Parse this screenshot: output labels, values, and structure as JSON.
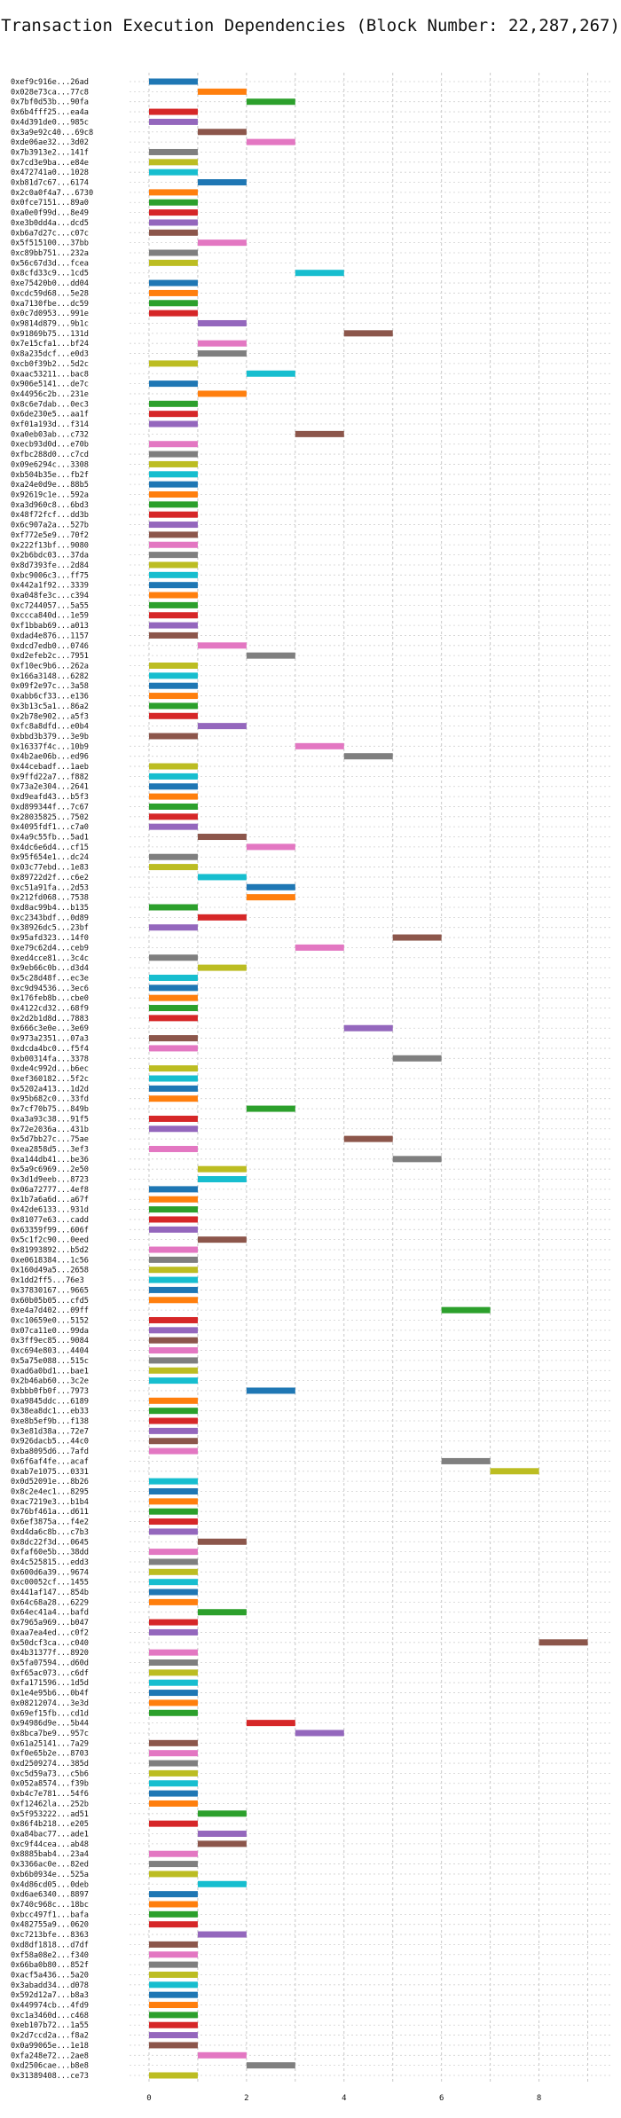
{
  "chart_data": {
    "type": "bar",
    "title": "Transaction Execution Dependencies (Block Number: 22,287,267)",
    "xlabel": "",
    "ylabel": "",
    "xlim": [
      -0.4,
      9.5
    ],
    "xticks": [
      0,
      2,
      4,
      6,
      8
    ],
    "grid": true,
    "palette": {
      "blue": "#1f77b4",
      "orange": "#ff7f0e",
      "green": "#2ca02c",
      "red": "#d62728",
      "purple": "#9467bd",
      "brown": "#8c564b",
      "pink": "#e377c2",
      "gray": "#7f7f7f",
      "olive": "#bcbd22",
      "cyan": "#17becf"
    },
    "bars": [
      {
        "tx": "0xef9c916e...26ad",
        "start": 0,
        "color": "blue"
      },
      {
        "tx": "0x028e73ca...77c8",
        "start": 1,
        "color": "orange"
      },
      {
        "tx": "0x7bf0d53b...90fa",
        "start": 2,
        "color": "green"
      },
      {
        "tx": "0x6b4fff25...ea4a",
        "start": 0,
        "color": "red"
      },
      {
        "tx": "0x4d391de0...985c",
        "start": 0,
        "color": "purple"
      },
      {
        "tx": "0x3a9e92c40...69c8",
        "start": 1,
        "color": "brown"
      },
      {
        "tx": "0xde06ae32...3d02",
        "start": 2,
        "color": "pink"
      },
      {
        "tx": "0x7b3913e2...141f",
        "start": 0,
        "color": "gray"
      },
      {
        "tx": "0x7cd3e9ba...e84e",
        "start": 0,
        "color": "olive"
      },
      {
        "tx": "0x472741a0...1028",
        "start": 0,
        "color": "cyan"
      },
      {
        "tx": "0xb81d7c67...6174",
        "start": 1,
        "color": "blue"
      },
      {
        "tx": "0x2c0a0f4a7...6730",
        "start": 0,
        "color": "orange"
      },
      {
        "tx": "0x0fce7151...89a0",
        "start": 0,
        "color": "green"
      },
      {
        "tx": "0xa0e0f99d...8e49",
        "start": 0,
        "color": "red"
      },
      {
        "tx": "0xe3b0dd4a...dcd5",
        "start": 0,
        "color": "purple"
      },
      {
        "tx": "0xb6a7d27c...c07c",
        "start": 0,
        "color": "brown"
      },
      {
        "tx": "0x5f515100...37bb",
        "start": 1,
        "color": "pink"
      },
      {
        "tx": "0xc89bb751...232a",
        "start": 0,
        "color": "gray"
      },
      {
        "tx": "0x56c67d3d...fcea",
        "start": 0,
        "color": "olive"
      },
      {
        "tx": "0x8cfd33c9...1cd5",
        "start": 3,
        "color": "cyan"
      },
      {
        "tx": "0xe75420b0...dd04",
        "start": 0,
        "color": "blue"
      },
      {
        "tx": "0xcdc59d68...5e28",
        "start": 0,
        "color": "orange"
      },
      {
        "tx": "0xa7130fbe...dc59",
        "start": 0,
        "color": "green"
      },
      {
        "tx": "0x0c7d0953...991e",
        "start": 0,
        "color": "red"
      },
      {
        "tx": "0x9814d879...9b1c",
        "start": 1,
        "color": "purple"
      },
      {
        "tx": "0x91869b75...131d",
        "start": 4,
        "color": "brown"
      },
      {
        "tx": "0x7e15cfa1...bf24",
        "start": 1,
        "color": "pink"
      },
      {
        "tx": "0x8a235dcf...e0d3",
        "start": 1,
        "color": "gray"
      },
      {
        "tx": "0xcb0f39b2...5d2c",
        "start": 0,
        "color": "olive"
      },
      {
        "tx": "0xaac53211...bac8",
        "start": 2,
        "color": "cyan"
      },
      {
        "tx": "0x906e5141...de7c",
        "start": 0,
        "color": "blue"
      },
      {
        "tx": "0x44956c2b...231e",
        "start": 1,
        "color": "orange"
      },
      {
        "tx": "0x8c6e7dab...0ec3",
        "start": 0,
        "color": "green"
      },
      {
        "tx": "0x6de230e5...aa1f",
        "start": 0,
        "color": "red"
      },
      {
        "tx": "0xf01a193d...f314",
        "start": 0,
        "color": "purple"
      },
      {
        "tx": "0xa0eb03ab...c732",
        "start": 3,
        "color": "brown"
      },
      {
        "tx": "0xecb93d0d...e70b",
        "start": 0,
        "color": "pink"
      },
      {
        "tx": "0xfbc288d0...c7cd",
        "start": 0,
        "color": "gray"
      },
      {
        "tx": "0x09e6294c...3308",
        "start": 0,
        "color": "olive"
      },
      {
        "tx": "0xb504b35e...fb2f",
        "start": 0,
        "color": "cyan"
      },
      {
        "tx": "0xa24e0d9e...88b5",
        "start": 0,
        "color": "blue"
      },
      {
        "tx": "0x92619c1e...592a",
        "start": 0,
        "color": "orange"
      },
      {
        "tx": "0xa3d960c8...6bd3",
        "start": 0,
        "color": "green"
      },
      {
        "tx": "0x48f72fcf...dd3b",
        "start": 0,
        "color": "red"
      },
      {
        "tx": "0x6c907a2a...527b",
        "start": 0,
        "color": "purple"
      },
      {
        "tx": "0xf772e5e9...70f2",
        "start": 0,
        "color": "brown"
      },
      {
        "tx": "0x222f13bf...9080",
        "start": 0,
        "color": "pink"
      },
      {
        "tx": "0x2b6bdc03...37da",
        "start": 0,
        "color": "gray"
      },
      {
        "tx": "0x8d7393fe...2d84",
        "start": 0,
        "color": "olive"
      },
      {
        "tx": "0xbc9006c3...ff75",
        "start": 0,
        "color": "cyan"
      },
      {
        "tx": "0x442a1f92...3339",
        "start": 0,
        "color": "blue"
      },
      {
        "tx": "0xa048fe3c...c394",
        "start": 0,
        "color": "orange"
      },
      {
        "tx": "0xc7244057...5a55",
        "start": 0,
        "color": "green"
      },
      {
        "tx": "0xccca840d...1e59",
        "start": 0,
        "color": "red"
      },
      {
        "tx": "0xf1bbab69...a013",
        "start": 0,
        "color": "purple"
      },
      {
        "tx": "0xdad4e876...1157",
        "start": 0,
        "color": "brown"
      },
      {
        "tx": "0xdcd7edb0...0746",
        "start": 1,
        "color": "pink"
      },
      {
        "tx": "0xd2efeb2c...7951",
        "start": 2,
        "color": "gray"
      },
      {
        "tx": "0xf10ec9b6...262a",
        "start": 0,
        "color": "olive"
      },
      {
        "tx": "0x166a3148...6282",
        "start": 0,
        "color": "cyan"
      },
      {
        "tx": "0x09f2e97c...3a58",
        "start": 0,
        "color": "blue"
      },
      {
        "tx": "0xabb6cf33...e136",
        "start": 0,
        "color": "orange"
      },
      {
        "tx": "0x3b13c5a1...86a2",
        "start": 0,
        "color": "green"
      },
      {
        "tx": "0x2b78e902...a5f3",
        "start": 0,
        "color": "red"
      },
      {
        "tx": "0xfc8a8dfd...e0b4",
        "start": 1,
        "color": "purple"
      },
      {
        "tx": "0xbbd3b379...3e9b",
        "start": 0,
        "color": "brown"
      },
      {
        "tx": "0x16337f4c...10b9",
        "start": 3,
        "color": "pink"
      },
      {
        "tx": "0x4b2ae06b...ed96",
        "start": 4,
        "color": "gray"
      },
      {
        "tx": "0x44cebadf...1aeb",
        "start": 0,
        "color": "olive"
      },
      {
        "tx": "0x9ffd22a7...f882",
        "start": 0,
        "color": "cyan"
      },
      {
        "tx": "0x73a2e304...2641",
        "start": 0,
        "color": "blue"
      },
      {
        "tx": "0xd9eafd43...b5f3",
        "start": 0,
        "color": "orange"
      },
      {
        "tx": "0xd899344f...7c67",
        "start": 0,
        "color": "green"
      },
      {
        "tx": "0x28035825...7502",
        "start": 0,
        "color": "red"
      },
      {
        "tx": "0x4095fdf1...c7a0",
        "start": 0,
        "color": "purple"
      },
      {
        "tx": "0x4a9c55fb...5ad1",
        "start": 1,
        "color": "brown"
      },
      {
        "tx": "0x4dc6e6d4...cf15",
        "start": 2,
        "color": "pink"
      },
      {
        "tx": "0x95f654e1...dc24",
        "start": 0,
        "color": "gray"
      },
      {
        "tx": "0x03c77ebd...1e83",
        "start": 0,
        "color": "olive"
      },
      {
        "tx": "0x89722d2f...c6e2",
        "start": 1,
        "color": "cyan"
      },
      {
        "tx": "0xc51a91fa...2d53",
        "start": 2,
        "color": "blue"
      },
      {
        "tx": "0x212fd068...7538",
        "start": 2,
        "color": "orange"
      },
      {
        "tx": "0xd8ac99b4...b135",
        "start": 0,
        "color": "green"
      },
      {
        "tx": "0xc2343bdf...0d89",
        "start": 1,
        "color": "red"
      },
      {
        "tx": "0x38926dc5...23bf",
        "start": 0,
        "color": "purple"
      },
      {
        "tx": "0x95afd323...14f0",
        "start": 5,
        "color": "brown"
      },
      {
        "tx": "0xe79c62d4...ceb9",
        "start": 3,
        "color": "pink"
      },
      {
        "tx": "0xed4cce81...3c4c",
        "start": 0,
        "color": "gray"
      },
      {
        "tx": "0x9eb66c0b...d3d4",
        "start": 1,
        "color": "olive"
      },
      {
        "tx": "0x5c28d48f...ec3e",
        "start": 0,
        "color": "cyan"
      },
      {
        "tx": "0xc9d94536...3ec6",
        "start": 0,
        "color": "blue"
      },
      {
        "tx": "0x176feb8b...cbe0",
        "start": 0,
        "color": "orange"
      },
      {
        "tx": "0x4122cd32...68f9",
        "start": 0,
        "color": "green"
      },
      {
        "tx": "0x2d2b1d8d...7883",
        "start": 0,
        "color": "red"
      },
      {
        "tx": "0x666c3e0e...3e69",
        "start": 4,
        "color": "purple"
      },
      {
        "tx": "0x973a2351...07a3",
        "start": 0,
        "color": "brown"
      },
      {
        "tx": "0xdcda4bc0...f5f4",
        "start": 0,
        "color": "pink"
      },
      {
        "tx": "0xb00314fa...3378",
        "start": 5,
        "color": "gray"
      },
      {
        "tx": "0xde4c992d...b6ec",
        "start": 0,
        "color": "olive"
      },
      {
        "tx": "0xef360182...5f2c",
        "start": 0,
        "color": "cyan"
      },
      {
        "tx": "0x5202a413...1d2d",
        "start": 0,
        "color": "blue"
      },
      {
        "tx": "0x95b682c0...33fd",
        "start": 0,
        "color": "orange"
      },
      {
        "tx": "0x7cf70b75...849b",
        "start": 2,
        "color": "green"
      },
      {
        "tx": "0xa3a93c38...91f5",
        "start": 0,
        "color": "red"
      },
      {
        "tx": "0x72e2036a...431b",
        "start": 0,
        "color": "purple"
      },
      {
        "tx": "0x5d7bb27c...75ae",
        "start": 4,
        "color": "brown"
      },
      {
        "tx": "0xea2858d5...3ef3",
        "start": 0,
        "color": "pink"
      },
      {
        "tx": "0xa144db41...be36",
        "start": 5,
        "color": "gray"
      },
      {
        "tx": "0x5a9c6969...2e50",
        "start": 1,
        "color": "olive"
      },
      {
        "tx": "0x3d1d9eeb...8723",
        "start": 1,
        "color": "cyan"
      },
      {
        "tx": "0x06a72777...4ef8",
        "start": 0,
        "color": "blue"
      },
      {
        "tx": "0x1b7a6a6d...a67f",
        "start": 0,
        "color": "orange"
      },
      {
        "tx": "0x42de6133...931d",
        "start": 0,
        "color": "green"
      },
      {
        "tx": "0x81077e63...cadd",
        "start": 0,
        "color": "red"
      },
      {
        "tx": "0x63359f99...606f",
        "start": 0,
        "color": "purple"
      },
      {
        "tx": "0x5c1f2c90...0eed",
        "start": 1,
        "color": "brown"
      },
      {
        "tx": "0x81993892...b5d2",
        "start": 0,
        "color": "pink"
      },
      {
        "tx": "0xe0618384...1c56",
        "start": 0,
        "color": "gray"
      },
      {
        "tx": "0x160d49a5...2658",
        "start": 0,
        "color": "olive"
      },
      {
        "tx": "0x1dd2ff5...76e3",
        "start": 0,
        "color": "cyan"
      },
      {
        "tx": "0x37830167...9665",
        "start": 0,
        "color": "blue"
      },
      {
        "tx": "0x60b05b05...cfd5",
        "start": 0,
        "color": "orange"
      },
      {
        "tx": "0xe4a7d402...09ff",
        "start": 6,
        "color": "green"
      },
      {
        "tx": "0xc10659e0...5152",
        "start": 0,
        "color": "red"
      },
      {
        "tx": "0x07ca11e0...99da",
        "start": 0,
        "color": "purple"
      },
      {
        "tx": "0x3ff9ec85...9084",
        "start": 0,
        "color": "brown"
      },
      {
        "tx": "0xc694e803...4404",
        "start": 0,
        "color": "pink"
      },
      {
        "tx": "0x5a75e088...515c",
        "start": 0,
        "color": "gray"
      },
      {
        "tx": "0xad6a0bd1...bae1",
        "start": 0,
        "color": "olive"
      },
      {
        "tx": "0x2b46ab60...3c2e",
        "start": 0,
        "color": "cyan"
      },
      {
        "tx": "0xbbb0fb0f...7973",
        "start": 2,
        "color": "blue"
      },
      {
        "tx": "0xa9845ddc...6189",
        "start": 0,
        "color": "orange"
      },
      {
        "tx": "0x38ea8dc1...eb33",
        "start": 0,
        "color": "green"
      },
      {
        "tx": "0xe8b5ef9b...f138",
        "start": 0,
        "color": "red"
      },
      {
        "tx": "0x3e81d38a...72e7",
        "start": 0,
        "color": "purple"
      },
      {
        "tx": "0x926dacb5...44c0",
        "start": 0,
        "color": "brown"
      },
      {
        "tx": "0xba8095d6...7afd",
        "start": 0,
        "color": "pink"
      },
      {
        "tx": "0x6f6af4fe...acaf",
        "start": 6,
        "color": "gray"
      },
      {
        "tx": "0xab7e1075...0331",
        "start": 7,
        "color": "olive"
      },
      {
        "tx": "0x0d52091e...8b26",
        "start": 0,
        "color": "cyan"
      },
      {
        "tx": "0x8c2e4ec1...8295",
        "start": 0,
        "color": "blue"
      },
      {
        "tx": "0xac7219e3...b1b4",
        "start": 0,
        "color": "orange"
      },
      {
        "tx": "0x76bf461a...d611",
        "start": 0,
        "color": "green"
      },
      {
        "tx": "0x6ef3875a...f4e2",
        "start": 0,
        "color": "red"
      },
      {
        "tx": "0xd4da6c8b...c7b3",
        "start": 0,
        "color": "purple"
      },
      {
        "tx": "0x8dc22f3d...0645",
        "start": 1,
        "color": "brown"
      },
      {
        "tx": "0xfaf60e5b...38dd",
        "start": 0,
        "color": "pink"
      },
      {
        "tx": "0x4c525815...edd3",
        "start": 0,
        "color": "gray"
      },
      {
        "tx": "0x600d6a39...9674",
        "start": 0,
        "color": "olive"
      },
      {
        "tx": "0xc00052cf...1455",
        "start": 0,
        "color": "cyan"
      },
      {
        "tx": "0x441af147...854b",
        "start": 0,
        "color": "blue"
      },
      {
        "tx": "0x64c68a28...6229",
        "start": 0,
        "color": "orange"
      },
      {
        "tx": "0x64ec41a4...bafd",
        "start": 1,
        "color": "green"
      },
      {
        "tx": "0x7965a969...b047",
        "start": 0,
        "color": "red"
      },
      {
        "tx": "0xaa7ea4ed...c0f2",
        "start": 0,
        "color": "purple"
      },
      {
        "tx": "0x50dcf3ca...c040",
        "start": 8,
        "color": "brown"
      },
      {
        "tx": "0x4b31377f...8920",
        "start": 0,
        "color": "pink"
      },
      {
        "tx": "0x5fa07594...d60d",
        "start": 0,
        "color": "gray"
      },
      {
        "tx": "0xf65ac073...c6df",
        "start": 0,
        "color": "olive"
      },
      {
        "tx": "0xfa171596...1d5d",
        "start": 0,
        "color": "cyan"
      },
      {
        "tx": "0x1e4e95b6...0b4f",
        "start": 0,
        "color": "blue"
      },
      {
        "tx": "0x08212074...3e3d",
        "start": 0,
        "color": "orange"
      },
      {
        "tx": "0x69ef15fb...cd1d",
        "start": 0,
        "color": "green"
      },
      {
        "tx": "0x94986d9e...5b44",
        "start": 2,
        "color": "red"
      },
      {
        "tx": "0x8bca7be9...957c",
        "start": 3,
        "color": "purple"
      },
      {
        "tx": "0x61a25141...7a29",
        "start": 0,
        "color": "brown"
      },
      {
        "tx": "0xf0e65b2e...8703",
        "start": 0,
        "color": "pink"
      },
      {
        "tx": "0xd2509274...385d",
        "start": 0,
        "color": "gray"
      },
      {
        "tx": "0xc5d59a73...c5b6",
        "start": 0,
        "color": "olive"
      },
      {
        "tx": "0x052a8574...f39b",
        "start": 0,
        "color": "cyan"
      },
      {
        "tx": "0xb4c7e781...54f6",
        "start": 0,
        "color": "blue"
      },
      {
        "tx": "0xf12462la...252b",
        "start": 0,
        "color": "orange"
      },
      {
        "tx": "0x5f953222...ad51",
        "start": 1,
        "color": "green"
      },
      {
        "tx": "0x86f4b218...e205",
        "start": 0,
        "color": "red"
      },
      {
        "tx": "0xa84bac77...ade1",
        "start": 1,
        "color": "purple"
      },
      {
        "tx": "0xc9f44cea...ab48",
        "start": 1,
        "color": "brown"
      },
      {
        "tx": "0x8885bab4...23a4",
        "start": 0,
        "color": "pink"
      },
      {
        "tx": "0x3366ac0e...82ed",
        "start": 0,
        "color": "gray"
      },
      {
        "tx": "0xb6b0934e...525a",
        "start": 0,
        "color": "olive"
      },
      {
        "tx": "0x4d86cd05...0deb",
        "start": 1,
        "color": "cyan"
      },
      {
        "tx": "0xd6ae6340...8897",
        "start": 0,
        "color": "blue"
      },
      {
        "tx": "0x740c968c...18bc",
        "start": 0,
        "color": "orange"
      },
      {
        "tx": "0xbcc497f1...bafa",
        "start": 0,
        "color": "green"
      },
      {
        "tx": "0x482755a9...0620",
        "start": 0,
        "color": "red"
      },
      {
        "tx": "0xc7213bfe...8363",
        "start": 1,
        "color": "purple"
      },
      {
        "tx": "0xd8df1818...d7df",
        "start": 0,
        "color": "brown"
      },
      {
        "tx": "0xf58a08e2...f340",
        "start": 0,
        "color": "pink"
      },
      {
        "tx": "0x66ba0b80...852f",
        "start": 0,
        "color": "gray"
      },
      {
        "tx": "0xacf5a436...5a20",
        "start": 0,
        "color": "olive"
      },
      {
        "tx": "0x3abadd34...d078",
        "start": 0,
        "color": "cyan"
      },
      {
        "tx": "0x592d12a7...b8a3",
        "start": 0,
        "color": "blue"
      },
      {
        "tx": "0x449974cb...4fd9",
        "start": 0,
        "color": "orange"
      },
      {
        "tx": "0xc1a3460d...c468",
        "start": 0,
        "color": "green"
      },
      {
        "tx": "0xeb107b72...1a55",
        "start": 0,
        "color": "red"
      },
      {
        "tx": "0x2d7ccd2a...f8a2",
        "start": 0,
        "color": "purple"
      },
      {
        "tx": "0x0a99065e...1e18",
        "start": 0,
        "color": "brown"
      },
      {
        "tx": "0xfa248e72...2ae8",
        "start": 1,
        "color": "pink"
      },
      {
        "tx": "0xd2506cae...b8e8",
        "start": 2,
        "color": "gray"
      },
      {
        "tx": "0x31389408...ce73",
        "start": 0,
        "color": "olive"
      }
    ]
  }
}
